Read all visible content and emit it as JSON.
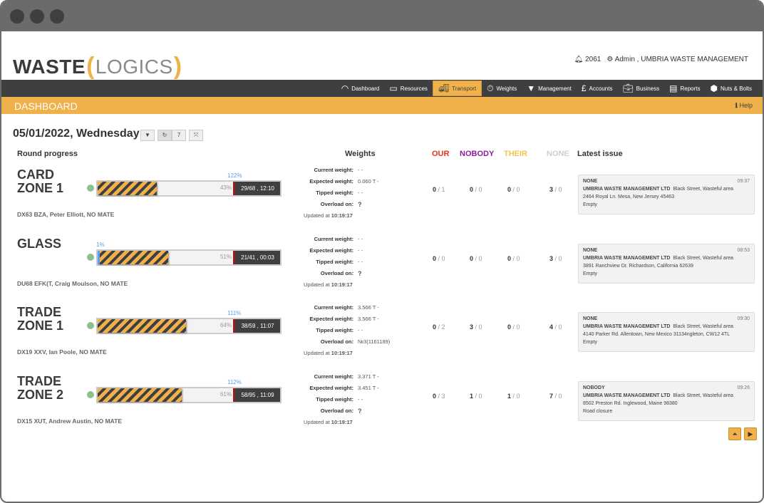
{
  "header": {
    "logo": "WASTE LOGICS",
    "logo_a": "WASTE",
    "logo_b": "LOGICS",
    "notifications": "2061",
    "user": "Admin , UMBRIA WASTE MANAGEMENT"
  },
  "nav": [
    {
      "label": "Dashboard",
      "icon": "gauge-icon"
    },
    {
      "label": "Resources",
      "icon": "box-icon"
    },
    {
      "label": "Transport",
      "icon": "truck-icon",
      "active": true
    },
    {
      "label": "Weights",
      "icon": "stopwatch-icon"
    },
    {
      "label": "Management",
      "icon": "tie-icon"
    },
    {
      "label": "Accounts",
      "icon": "pound-icon"
    },
    {
      "label": "Business",
      "icon": "briefcase-icon"
    },
    {
      "label": "Reports",
      "icon": "document-icon"
    },
    {
      "label": "Nuts & Bolts",
      "icon": "hexagon-icon"
    }
  ],
  "page": {
    "title": "DASHBOARD",
    "help": "Help",
    "date": "05/01/2022, Wednesday",
    "days": "7"
  },
  "columns": {
    "round": "Round progress",
    "weights": "Weights",
    "our": "OUR",
    "nobody": "NOBODY",
    "their": "THEIR",
    "none": "NONE",
    "issue": "Latest issue"
  },
  "colors": {
    "our": "#e8311d",
    "nobody": "#8b1e9b",
    "their": "#f0c64a",
    "none": "#cfcfcf",
    "accent": "#f0b14a"
  },
  "labels": {
    "current": "Current weight:",
    "expected": "Expected weight:",
    "tipped": "Tipped weight:",
    "overload": "Overload on:",
    "updated": "Updated at"
  },
  "rounds": [
    {
      "zone": "CARD ZONE 1",
      "progress": 43,
      "progress_label": "43%",
      "marker": "122%",
      "marker_pct": 122,
      "summary": "29/68 , 12:10",
      "vehicle": "DX63 BZA, Peter Elliott, NO MATE",
      "current": "- -",
      "expected": "0.060 T -",
      "tipped": "- -",
      "overload": "?",
      "updated": "10:19:17",
      "our": [
        "0",
        "1"
      ],
      "nobody": [
        "0",
        "0"
      ],
      "their": [
        "0",
        "0"
      ],
      "none": [
        "3",
        "0"
      ],
      "issue": {
        "type": "NONE",
        "time": "09:37",
        "company": "UMBRIA WASTE MANAGEMENT LTD",
        "area": "Black Street, Wasteful area",
        "address": "2464 Royal Ln. Mesa, New Jersey 45463",
        "status": "Empty"
      }
    },
    {
      "zone": "GLASS",
      "progress": 51,
      "progress_label": "51%",
      "marker": "1%",
      "marker_pct": 1,
      "summary": "21/41 , 00:03",
      "vehicle": "DU68 EFK(T, Craig Moulson, NO MATE",
      "current": "- -",
      "expected": "- -",
      "tipped": "- -",
      "overload": "?",
      "updated": "10:19:17",
      "our": [
        "0",
        "0"
      ],
      "nobody": [
        "0",
        "0"
      ],
      "their": [
        "0",
        "0"
      ],
      "none": [
        "3",
        "0"
      ],
      "issue": {
        "type": "NONE",
        "time": "08:53",
        "company": "UMBRIA WASTE MANAGEMENT LTD",
        "area": "Black Street, Wasteful area",
        "address": "3891 Ranchview Dr. Richardson, California 62639",
        "status": "Empty"
      }
    },
    {
      "zone": "TRADE ZONE 1",
      "progress": 64,
      "progress_label": "64%",
      "marker": "111%",
      "marker_pct": 111,
      "summary": "38/59 , 11:07",
      "vehicle": "DX19 XXV, Ian Poole, NO MATE",
      "current": "3.566 T -",
      "expected": "3.566 T -",
      "tipped": "- -",
      "overload": "№3(1161189)",
      "updated": "10:19:17",
      "our": [
        "0",
        "2"
      ],
      "nobody": [
        "3",
        "0"
      ],
      "their": [
        "0",
        "0"
      ],
      "none": [
        "4",
        "0"
      ],
      "issue": {
        "type": "NONE",
        "time": "09:30",
        "company": "UMBRIA WASTE MANAGEMENT LTD",
        "area": "Black Street, Wasteful area",
        "address": "4140 Parker Rd. Allentown, New Mexico 31134ngleton, CW12 4TL",
        "status": "Empty"
      }
    },
    {
      "zone": "TRADE ZONE 2",
      "progress": 61,
      "progress_label": "61%",
      "marker": "112%",
      "marker_pct": 112,
      "summary": "58/95 , 11:09",
      "vehicle": "DX15 XUT, Andrew Austin, NO MATE",
      "current": "3.371 T -",
      "expected": "3.451 T -",
      "tipped": "- -",
      "overload": "?",
      "updated": "10:19:17",
      "our": [
        "0",
        "3"
      ],
      "nobody": [
        "1",
        "0"
      ],
      "their": [
        "1",
        "0"
      ],
      "none": [
        "7",
        "0"
      ],
      "issue": {
        "type": "NOBODY",
        "time": "09:26",
        "company": "UMBRIA WASTE MANAGEMENT LTD",
        "area": "Black Street, Wasteful area",
        "address": "8502 Preston Rd. Inglewood, Maine 98380",
        "status": "Road closure"
      }
    }
  ]
}
